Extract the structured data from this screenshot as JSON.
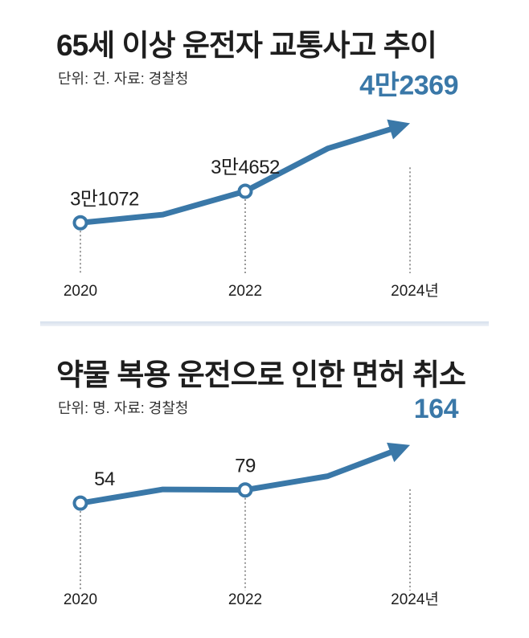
{
  "chart_data": [
    {
      "type": "line",
      "title": "65세 이상 운전자 교통사고 추이",
      "unit_label": "단위: 건. 자료: 경찰청",
      "x": [
        2020,
        2021,
        2022,
        2023,
        2024
      ],
      "values": [
        31072,
        32000,
        34652,
        39500,
        42369
      ],
      "x_tick_labels": [
        "2020",
        "2022",
        "2024년"
      ],
      "x_tick_values": [
        2020,
        2022,
        2024
      ],
      "data_labels": [
        {
          "x": 2020,
          "text": "3만1072",
          "emphasis": false
        },
        {
          "x": 2022,
          "text": "3만4652",
          "emphasis": false
        },
        {
          "x": 2024,
          "text": "4만2369",
          "emphasis": true
        }
      ],
      "ylim": [
        29000,
        44500
      ],
      "color": "#3a78a8",
      "label_color": "#1e1e1e"
    },
    {
      "type": "line",
      "title": "약물 복용 운전으로 인한 면허 취소",
      "unit_label": "단위: 명. 자료: 경찰청",
      "x": [
        2020,
        2021,
        2022,
        2023,
        2024
      ],
      "values": [
        54,
        80,
        79,
        105,
        164
      ],
      "x_tick_labels": [
        "2020",
        "2022",
        "2024년"
      ],
      "x_tick_values": [
        2020,
        2022,
        2024
      ],
      "data_labels": [
        {
          "x": 2020,
          "text": "54",
          "emphasis": false
        },
        {
          "x": 2022,
          "text": "79",
          "emphasis": false
        },
        {
          "x": 2024,
          "text": "164",
          "emphasis": true
        }
      ],
      "ylim": [
        -5,
        185
      ],
      "color": "#3a78a8",
      "label_color": "#1e1e1e"
    }
  ]
}
